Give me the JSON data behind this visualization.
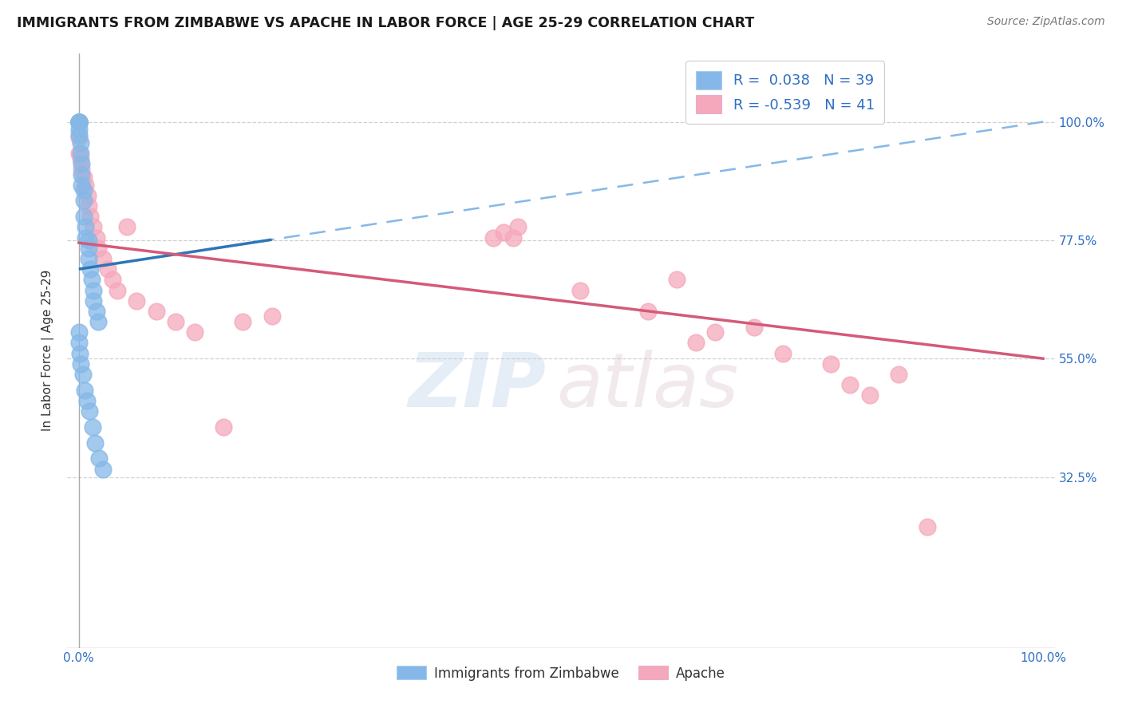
{
  "title": "IMMIGRANTS FROM ZIMBABWE VS APACHE IN LABOR FORCE | AGE 25-29 CORRELATION CHART",
  "source_text": "Source: ZipAtlas.com",
  "ylabel": "In Labor Force | Age 25-29",
  "R_blue": 0.038,
  "N_blue": 39,
  "R_pink": -0.539,
  "N_pink": 41,
  "blue_color": "#85b8e8",
  "pink_color": "#f5a8bc",
  "trendline_blue_color": "#2e75b6",
  "trendline_blue_dash_color": "#85b8e8",
  "trendline_pink_color": "#d45a7a",
  "legend_label_blue": "Immigrants from Zimbabwe",
  "legend_label_pink": "Apache",
  "blue_x": [
    0.0,
    0.0,
    0.0,
    0.0,
    0.0,
    0.0,
    0.0,
    0.0,
    0.002,
    0.002,
    0.003,
    0.003,
    0.003,
    0.005,
    0.005,
    0.005,
    0.007,
    0.007,
    0.01,
    0.01,
    0.01,
    0.012,
    0.013,
    0.015,
    0.015,
    0.018,
    0.02,
    0.0,
    0.0,
    0.001,
    0.002,
    0.004,
    0.006,
    0.008,
    0.011,
    0.014,
    0.017,
    0.021,
    0.025
  ],
  "blue_y": [
    1.0,
    1.0,
    1.0,
    1.0,
    1.0,
    1.0,
    0.985,
    0.975,
    0.96,
    0.94,
    0.92,
    0.9,
    0.88,
    0.87,
    0.85,
    0.82,
    0.8,
    0.78,
    0.775,
    0.76,
    0.74,
    0.72,
    0.7,
    0.68,
    0.66,
    0.64,
    0.62,
    0.6,
    0.58,
    0.56,
    0.54,
    0.52,
    0.49,
    0.47,
    0.45,
    0.42,
    0.39,
    0.36,
    0.34
  ],
  "pink_x": [
    0.0,
    0.0,
    0.0,
    0.002,
    0.003,
    0.005,
    0.007,
    0.009,
    0.01,
    0.012,
    0.015,
    0.018,
    0.02,
    0.025,
    0.03,
    0.035,
    0.04,
    0.05,
    0.06,
    0.08,
    0.1,
    0.12,
    0.15,
    0.17,
    0.2,
    0.43,
    0.44,
    0.45,
    0.455,
    0.52,
    0.59,
    0.62,
    0.64,
    0.66,
    0.7,
    0.73,
    0.78,
    0.8,
    0.82,
    0.85,
    0.88
  ],
  "pink_y": [
    1.0,
    0.97,
    0.94,
    0.93,
    0.91,
    0.895,
    0.88,
    0.86,
    0.84,
    0.82,
    0.8,
    0.78,
    0.76,
    0.74,
    0.72,
    0.7,
    0.68,
    0.8,
    0.66,
    0.64,
    0.62,
    0.6,
    0.42,
    0.62,
    0.63,
    0.78,
    0.79,
    0.78,
    0.8,
    0.68,
    0.64,
    0.7,
    0.58,
    0.6,
    0.61,
    0.56,
    0.54,
    0.5,
    0.48,
    0.52,
    0.23
  ]
}
